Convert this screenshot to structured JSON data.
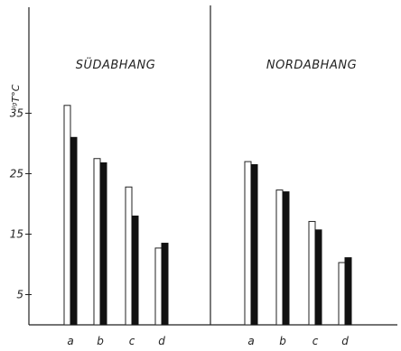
{
  "chart_data": {
    "type": "bar",
    "ylabel": "ᴵᵍT°C",
    "yticks": [
      5,
      15,
      25,
      35
    ],
    "ylim": [
      0,
      44
    ],
    "grid": false,
    "panels": [
      {
        "title": "SÜDABHANG",
        "categories": [
          "a",
          "b",
          "c",
          "d"
        ],
        "series": [
          {
            "style": "open",
            "values": [
              36.3,
              27.5,
              22.8,
              12.7
            ]
          },
          {
            "style": "filled",
            "values": [
              31.0,
              26.8,
              18.0,
              13.5
            ]
          }
        ]
      },
      {
        "title": "NORDABHANG",
        "categories": [
          "a",
          "b",
          "c",
          "d"
        ],
        "series": [
          {
            "style": "open",
            "values": [
              27.0,
              22.3,
              17.1,
              10.3
            ]
          },
          {
            "style": "filled",
            "values": [
              26.5,
              22.0,
              15.7,
              11.1
            ]
          }
        ]
      }
    ]
  }
}
